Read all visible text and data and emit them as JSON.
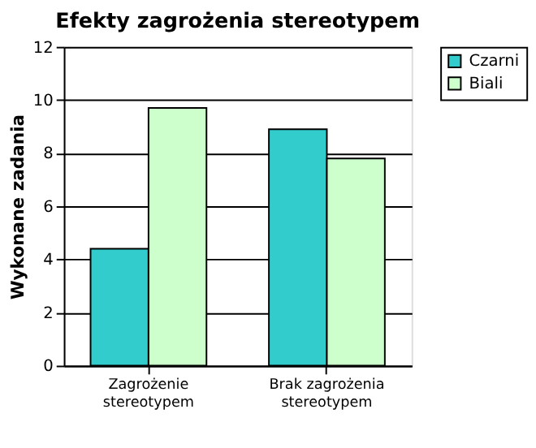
{
  "chart_data": {
    "type": "bar",
    "title": "Efekty zagrożenia stereotypem",
    "ylabel": "Wykonane zadania",
    "categories": [
      "Zagrożenie stereotypem",
      "Brak zagrożenia stereotypem"
    ],
    "series": [
      {
        "name": "Czarni",
        "color": "#33cccc",
        "values": [
          4.4,
          8.9
        ]
      },
      {
        "name": "Biali",
        "color": "#ccffcc",
        "values": [
          9.7,
          7.8
        ]
      }
    ],
    "ylim": [
      0,
      12
    ],
    "yticks": [
      0,
      2,
      4,
      6,
      8,
      10,
      12
    ],
    "grid": "y",
    "legend": "right"
  }
}
